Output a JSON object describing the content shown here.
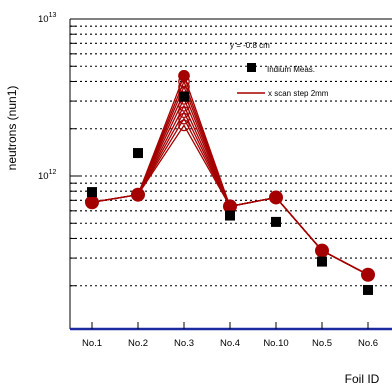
{
  "chart_data": {
    "type": "line",
    "y_axis": {
      "label": "neutrons (nun1)",
      "scale": "log",
      "ylim": [
        100000000000,
        10000000000000
      ],
      "tick_labels": [
        {
          "base": "10",
          "exp": "12",
          "value": 1000000000000
        },
        {
          "base": "10",
          "exp": "13",
          "value": 10000000000000
        }
      ],
      "grid": "horizontal dotted"
    },
    "x_axis": {
      "label": "Foil ID",
      "categories": [
        "No.1",
        "No.2",
        "No.3",
        "No.4",
        "No.10",
        "No.5",
        "No.6"
      ]
    },
    "legend": {
      "header": "y = -0.8 cm",
      "placement": "top-right",
      "entries": [
        {
          "label": "Indium Meas.",
          "marker": "filled-square",
          "color": "#000000"
        },
        {
          "label": "x scan step 2mm",
          "marker": "line",
          "color": "#a50000"
        }
      ]
    },
    "series": [
      {
        "name": "Indium Meas.",
        "style": "markers",
        "color": "#000000",
        "values": [
          790000000000,
          1400000000000,
          3200000000000,
          560000000000,
          510000000000,
          285000000000,
          188000000000
        ]
      },
      {
        "name": "x scan step 2mm",
        "style": "lines",
        "color": "#a50000",
        "scan_curves": [
          [
            680000000000,
            760000000000,
            4350000000000,
            640000000000,
            730000000000,
            335000000000,
            235000000000
          ],
          [
            680000000000,
            760000000000,
            4000000000000,
            640000000000,
            730000000000,
            335000000000,
            235000000000
          ],
          [
            680000000000,
            760000000000,
            3700000000000,
            640000000000,
            730000000000,
            335000000000,
            235000000000
          ],
          [
            680000000000,
            760000000000,
            3400000000000,
            640000000000,
            730000000000,
            335000000000,
            235000000000
          ],
          [
            680000000000,
            760000000000,
            3100000000000,
            640000000000,
            730000000000,
            335000000000,
            235000000000
          ],
          [
            680000000000,
            760000000000,
            2800000000000,
            640000000000,
            730000000000,
            335000000000,
            235000000000
          ],
          [
            680000000000,
            760000000000,
            2550000000000,
            640000000000,
            730000000000,
            335000000000,
            235000000000
          ],
          [
            680000000000,
            760000000000,
            2320000000000,
            640000000000,
            730000000000,
            335000000000,
            235000000000
          ],
          [
            680000000000,
            760000000000,
            2100000000000,
            640000000000,
            730000000000,
            335000000000,
            235000000000
          ]
        ]
      }
    ]
  }
}
